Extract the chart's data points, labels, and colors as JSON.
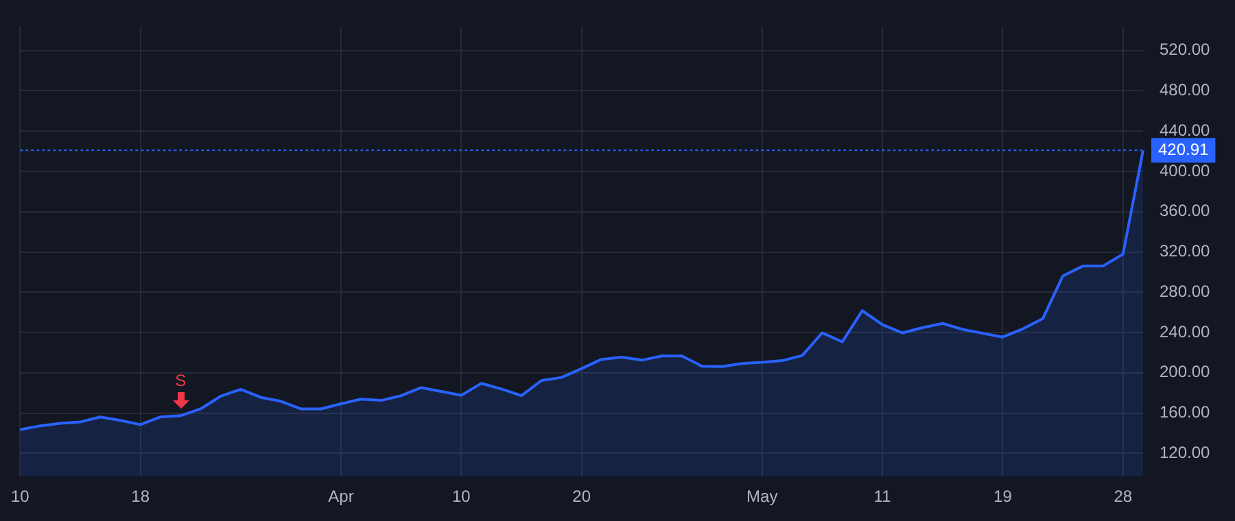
{
  "chart_data": {
    "type": "area",
    "color": "#2962ff",
    "marker": "none",
    "grid": true,
    "legend": false,
    "categories": [
      "10",
      null,
      null,
      null,
      null,
      null,
      "18",
      null,
      null,
      null,
      null,
      null,
      null,
      null,
      null,
      null,
      "Apr",
      null,
      null,
      null,
      null,
      null,
      "10",
      null,
      null,
      null,
      null,
      null,
      "20",
      null,
      null,
      null,
      null,
      null,
      null,
      null,
      null,
      "May",
      null,
      null,
      null,
      null,
      null,
      "11",
      null,
      null,
      null,
      null,
      null,
      "19",
      null,
      null,
      null,
      null,
      null,
      "28",
      null
    ],
    "values": [
      143.6,
      147.4,
      149.9,
      151.2,
      156.2,
      152.8,
      148.6,
      156.2,
      157.5,
      164.2,
      176.8,
      183.6,
      175.6,
      171.8,
      164.2,
      164.2,
      169.3,
      173.9,
      172.6,
      177.3,
      185.3,
      181.5,
      177.7,
      189.5,
      184,
      177.3,
      192.4,
      195.4,
      204.2,
      213.4,
      215.5,
      212.6,
      216.8,
      216.8,
      206.6,
      206.2,
      209.2,
      210.4,
      212.1,
      217.2,
      239.7,
      230.8,
      261.8,
      247.8,
      239.7,
      244.8,
      249.1,
      243.1,
      239.3,
      235.5,
      243.6,
      253.8,
      296.2,
      306,
      306,
      317.9,
      420.91
    ],
    "ylim": [
      97,
      544
    ],
    "yticks": [
      {
        "value": 120,
        "label": "120.00"
      },
      {
        "value": 160,
        "label": "160.00"
      },
      {
        "value": 200,
        "label": "200.00"
      },
      {
        "value": 240,
        "label": "240.00"
      },
      {
        "value": 280,
        "label": "280.00"
      },
      {
        "value": 320,
        "label": "320.00"
      },
      {
        "value": 360,
        "label": "360.00"
      },
      {
        "value": 400,
        "label": "400.00"
      },
      {
        "value": 440,
        "label": "440.00"
      },
      {
        "value": 480,
        "label": "480.00"
      },
      {
        "value": 520,
        "label": "520.00"
      }
    ],
    "ref_lines": [
      {
        "axis": "y",
        "value": 420.91,
        "label": "420.91",
        "color": "#2962ff",
        "line_style": "dotted"
      }
    ],
    "annotations": [
      {
        "text": "S",
        "y": 157.5
      }
    ]
  }
}
